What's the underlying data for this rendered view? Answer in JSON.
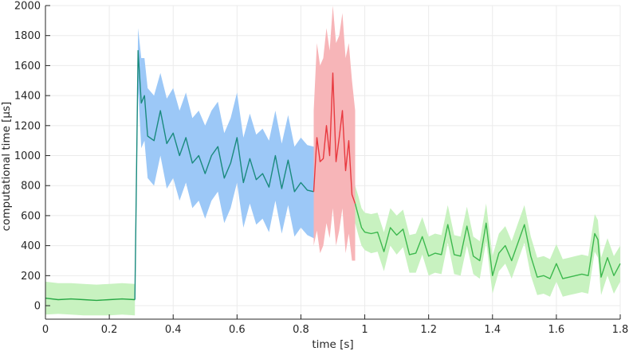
{
  "chart_data": {
    "type": "line",
    "title": "",
    "xlabel": "time [s]",
    "ylabel": "computational time [μs]",
    "xlim": [
      0,
      1.8
    ],
    "ylim": [
      -90,
      2000
    ],
    "grid": true,
    "x_ticks": [
      0,
      0.2,
      0.4,
      0.6,
      0.8,
      1,
      1.2,
      1.4,
      1.6,
      1.8
    ],
    "x_tick_labels": [
      "0",
      "0.2",
      "0.4",
      "0.6",
      "0.8",
      "1",
      "1.2",
      "1.4",
      "1.6",
      "1.8"
    ],
    "y_ticks": [
      0,
      200,
      400,
      600,
      800,
      1000,
      1200,
      1400,
      1600,
      1800,
      2000
    ],
    "y_tick_labels": [
      "0",
      "200",
      "400",
      "600",
      "800",
      "1000",
      "1200",
      "1400",
      "1600",
      "1800",
      "2000"
    ],
    "series": [
      {
        "color": "#27a844",
        "band_color": "#c8f2c0",
        "x": [
          0.0,
          0.04,
          0.08,
          0.12,
          0.16,
          0.2,
          0.24,
          0.28
        ],
        "values": [
          50,
          40,
          45,
          40,
          35,
          40,
          45,
          40
        ],
        "band": [
          [
            -60,
            160
          ],
          [
            -55,
            150
          ],
          [
            -60,
            150
          ],
          [
            -65,
            145
          ],
          [
            -65,
            140
          ],
          [
            -65,
            145
          ],
          [
            -60,
            150
          ],
          [
            -65,
            145
          ]
        ]
      },
      {
        "color": "#1a8a7e",
        "band_color": "#9cc8f7",
        "x": [
          0.28,
          0.29,
          0.3,
          0.31,
          0.32,
          0.34,
          0.36,
          0.38,
          0.4,
          0.42,
          0.44,
          0.46,
          0.48,
          0.5,
          0.52,
          0.54,
          0.56,
          0.58,
          0.6,
          0.62,
          0.64,
          0.66,
          0.68,
          0.7,
          0.72,
          0.74,
          0.76,
          0.78,
          0.8,
          0.82,
          0.84
        ],
        "values": [
          40,
          1700,
          1350,
          1400,
          1130,
          1100,
          1300,
          1080,
          1150,
          1000,
          1120,
          950,
          1000,
          880,
          1000,
          1060,
          850,
          950,
          1120,
          820,
          980,
          840,
          880,
          790,
          1000,
          780,
          970,
          760,
          820,
          770,
          760
        ],
        "band": [
          [
            0,
            80
          ],
          [
            1450,
            1850
          ],
          [
            1050,
            1650
          ],
          [
            1100,
            1650
          ],
          [
            850,
            1450
          ],
          [
            800,
            1400
          ],
          [
            1000,
            1550
          ],
          [
            780,
            1380
          ],
          [
            850,
            1450
          ],
          [
            700,
            1300
          ],
          [
            820,
            1420
          ],
          [
            650,
            1250
          ],
          [
            700,
            1300
          ],
          [
            580,
            1200
          ],
          [
            700,
            1300
          ],
          [
            760,
            1360
          ],
          [
            550,
            1150
          ],
          [
            650,
            1250
          ],
          [
            820,
            1420
          ],
          [
            520,
            1120
          ],
          [
            680,
            1280
          ],
          [
            540,
            1140
          ],
          [
            580,
            1180
          ],
          [
            490,
            1100
          ],
          [
            700,
            1300
          ],
          [
            480,
            1080
          ],
          [
            670,
            1270
          ],
          [
            460,
            1060
          ],
          [
            520,
            1120
          ],
          [
            470,
            1070
          ],
          [
            450,
            1060
          ]
        ]
      },
      {
        "color": "#e8393f",
        "band_color": "#f7b5b8",
        "x": [
          0.84,
          0.85,
          0.86,
          0.87,
          0.88,
          0.89,
          0.9,
          0.91,
          0.92,
          0.93,
          0.94,
          0.95,
          0.96,
          0.97
        ],
        "values": [
          760,
          1120,
          960,
          980,
          1200,
          1000,
          1550,
          960,
          1120,
          1300,
          900,
          1100,
          740,
          680
        ],
        "band": [
          [
            400,
            1300
          ],
          [
            500,
            1750
          ],
          [
            350,
            1600
          ],
          [
            400,
            1650
          ],
          [
            550,
            1850
          ],
          [
            450,
            1700
          ],
          [
            650,
            2000
          ],
          [
            400,
            1750
          ],
          [
            500,
            1800
          ],
          [
            650,
            1950
          ],
          [
            350,
            1650
          ],
          [
            480,
            1750
          ],
          [
            300,
            1500
          ],
          [
            300,
            1300
          ]
        ]
      },
      {
        "color": "#3cb84d",
        "band_color": "#c8f2c0",
        "x": [
          0.97,
          0.98,
          0.99,
          1.0,
          1.02,
          1.04,
          1.06,
          1.08,
          1.1,
          1.12,
          1.14,
          1.16,
          1.18,
          1.2,
          1.22,
          1.24,
          1.26,
          1.28,
          1.3,
          1.32,
          1.34,
          1.36,
          1.38,
          1.4,
          1.42,
          1.44,
          1.46,
          1.48,
          1.5,
          1.52,
          1.54,
          1.56,
          1.58,
          1.6,
          1.62,
          1.64,
          1.66,
          1.68,
          1.7,
          1.72,
          1.73,
          1.74,
          1.76,
          1.78,
          1.8
        ],
        "values": [
          680,
          600,
          520,
          490,
          480,
          490,
          360,
          520,
          470,
          510,
          340,
          350,
          460,
          330,
          350,
          340,
          540,
          340,
          330,
          530,
          330,
          300,
          550,
          200,
          350,
          400,
          300,
          420,
          540,
          330,
          190,
          200,
          180,
          280,
          180,
          190,
          200,
          210,
          200,
          480,
          440,
          190,
          320,
          200,
          280
        ],
        "band": [
          [
            550,
            800
          ],
          [
            470,
            730
          ],
          [
            400,
            650
          ],
          [
            370,
            620
          ],
          [
            350,
            610
          ],
          [
            360,
            620
          ],
          [
            230,
            490
          ],
          [
            400,
            650
          ],
          [
            340,
            600
          ],
          [
            390,
            640
          ],
          [
            220,
            470
          ],
          [
            220,
            480
          ],
          [
            340,
            590
          ],
          [
            200,
            460
          ],
          [
            220,
            480
          ],
          [
            210,
            470
          ],
          [
            420,
            670
          ],
          [
            210,
            470
          ],
          [
            200,
            460
          ],
          [
            400,
            660
          ],
          [
            210,
            460
          ],
          [
            180,
            430
          ],
          [
            430,
            680
          ],
          [
            80,
            330
          ],
          [
            230,
            480
          ],
          [
            280,
            530
          ],
          [
            180,
            430
          ],
          [
            300,
            550
          ],
          [
            420,
            670
          ],
          [
            200,
            460
          ],
          [
            70,
            320
          ],
          [
            80,
            330
          ],
          [
            60,
            310
          ],
          [
            160,
            410
          ],
          [
            60,
            310
          ],
          [
            70,
            320
          ],
          [
            80,
            330
          ],
          [
            90,
            340
          ],
          [
            80,
            330
          ],
          [
            360,
            610
          ],
          [
            320,
            570
          ],
          [
            70,
            320
          ],
          [
            200,
            450
          ],
          [
            80,
            330
          ],
          [
            160,
            400
          ]
        ]
      }
    ]
  }
}
